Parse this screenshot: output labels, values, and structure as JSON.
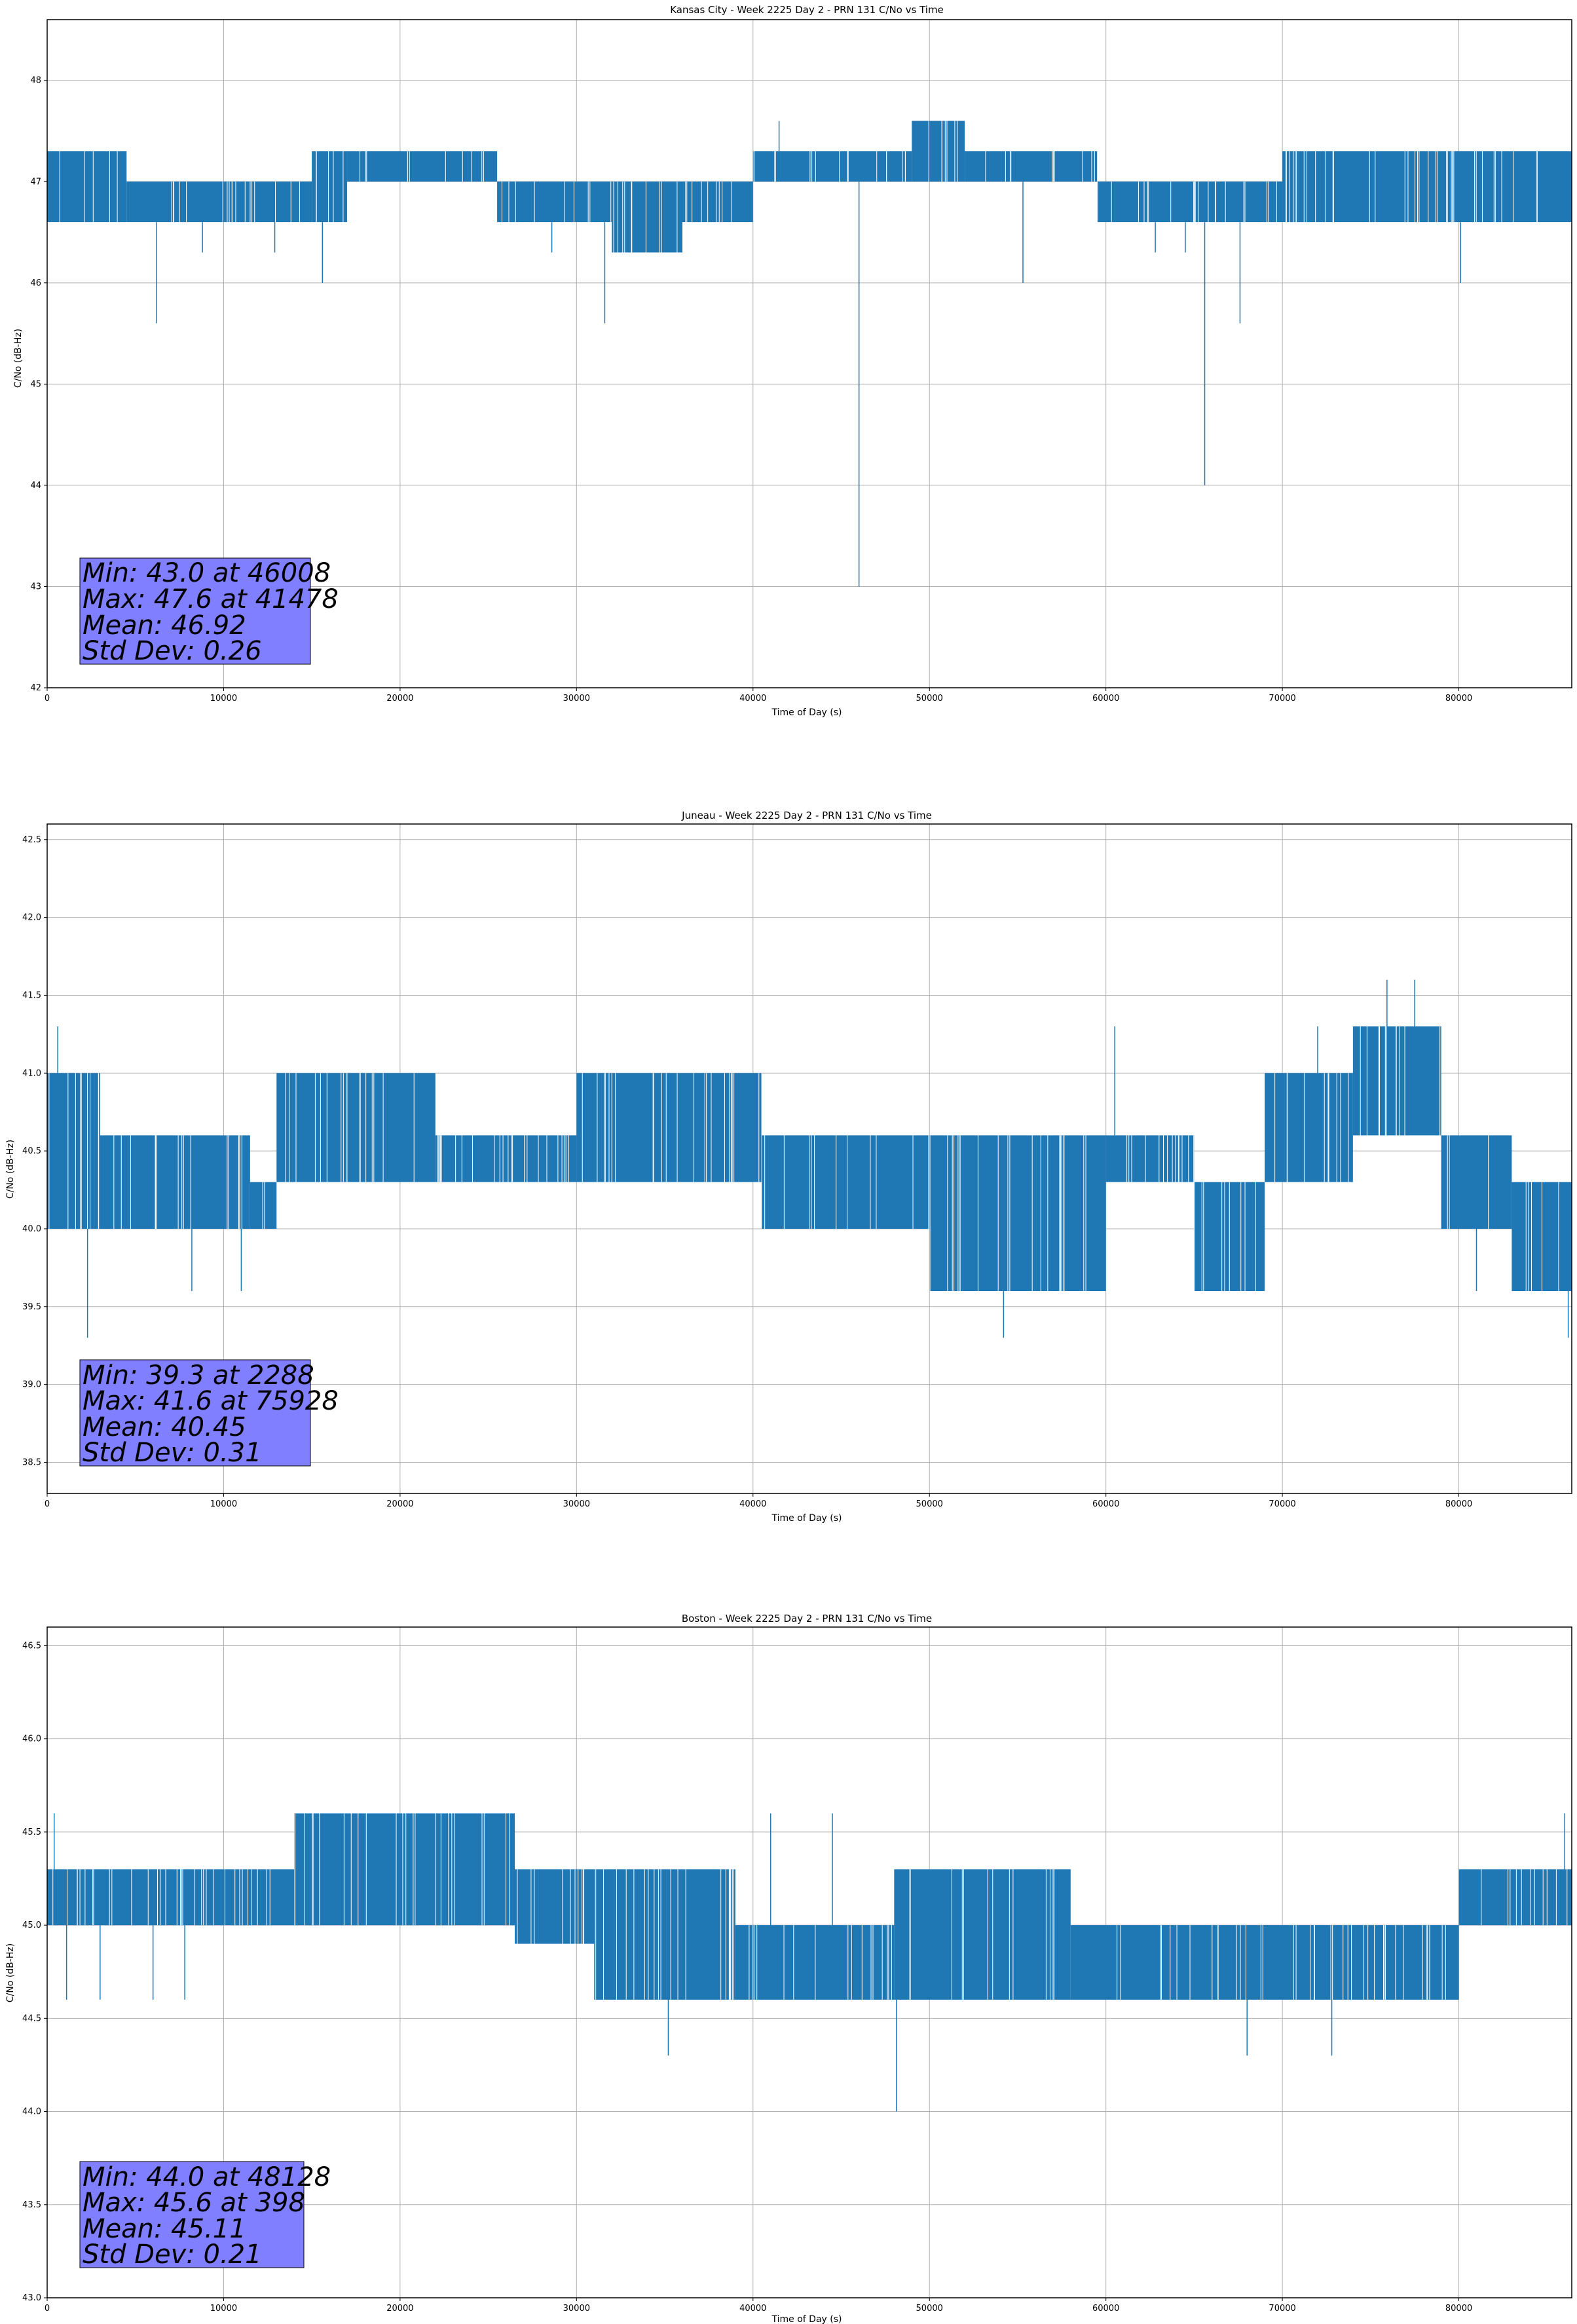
{
  "chart_data": [
    {
      "type": "line",
      "title": "Kansas City - Week 2225 Day 2 - PRN 131 C/No vs Time",
      "xlabel": "Time of Day (s)",
      "ylabel": "C/No (dB-Hz)",
      "xlim": [
        0,
        86400
      ],
      "ylim": [
        42,
        48.6
      ],
      "xticks": [
        0,
        10000,
        20000,
        30000,
        40000,
        50000,
        60000,
        70000,
        80000
      ],
      "yticks": [
        42,
        43,
        44,
        45,
        46,
        47,
        48
      ],
      "ytick_labels": [
        "42",
        "43",
        "44",
        "45",
        "46",
        "47",
        "48"
      ],
      "grid": true,
      "series_color": "#1f77b4",
      "series": [
        {
          "segments": [
            {
              "x": [
                0,
                4500
              ],
              "low": 46.6,
              "high": 47.3
            },
            {
              "x": [
                4500,
                15000
              ],
              "low": 46.6,
              "high": 47.0
            },
            {
              "x": [
                15000,
                17000
              ],
              "low": 46.6,
              "high": 47.3
            },
            {
              "x": [
                17000,
                25500
              ],
              "low": 47.0,
              "high": 47.3
            },
            {
              "x": [
                25500,
                32000
              ],
              "low": 46.6,
              "high": 47.0
            },
            {
              "x": [
                32000,
                36000
              ],
              "low": 46.3,
              "high": 47.0
            },
            {
              "x": [
                36000,
                40000
              ],
              "low": 46.6,
              "high": 47.0
            },
            {
              "x": [
                40000,
                49000
              ],
              "low": 47.0,
              "high": 47.3
            },
            {
              "x": [
                49000,
                52000
              ],
              "low": 47.0,
              "high": 47.6
            },
            {
              "x": [
                52000,
                59500
              ],
              "low": 47.0,
              "high": 47.3
            },
            {
              "x": [
                59500,
                70000
              ],
              "low": 46.6,
              "high": 47.0
            },
            {
              "x": [
                70000,
                86400
              ],
              "low": 46.6,
              "high": 47.3
            }
          ],
          "spikes": [
            {
              "x": 6200,
              "y": 45.6
            },
            {
              "x": 15600,
              "y": 46.0
            },
            {
              "x": 31600,
              "y": 45.6
            },
            {
              "x": 46008,
              "y": 43.0
            },
            {
              "x": 55300,
              "y": 46.0
            },
            {
              "x": 65600,
              "y": 44.0
            },
            {
              "x": 67600,
              "y": 45.6
            },
            {
              "x": 80100,
              "y": 46.0
            },
            {
              "x": 41478,
              "y": 47.6
            },
            {
              "x": 8800,
              "y": 46.3
            },
            {
              "x": 12900,
              "y": 46.3
            },
            {
              "x": 28600,
              "y": 46.3
            },
            {
              "x": 62800,
              "y": 46.3
            },
            {
              "x": 64500,
              "y": 46.3
            }
          ]
        }
      ],
      "annotation": [
        "Min: 43.0 at 46008",
        "Max: 47.6 at 41478",
        "Mean: 46.92",
        "Std Dev: 0.26"
      ]
    },
    {
      "type": "line",
      "title": "Juneau - Week 2225 Day 2 - PRN 131 C/No vs Time",
      "xlabel": "Time of Day (s)",
      "ylabel": "C/No (dB-Hz)",
      "xlim": [
        0,
        86400
      ],
      "ylim": [
        38.3,
        42.6
      ],
      "xticks": [
        0,
        10000,
        20000,
        30000,
        40000,
        50000,
        60000,
        70000,
        80000
      ],
      "yticks": [
        38.5,
        39.0,
        39.5,
        40.0,
        40.5,
        41.0,
        41.5,
        42.0,
        42.5
      ],
      "ytick_labels": [
        "38.5",
        "39.0",
        "39.5",
        "40.0",
        "40.5",
        "41.0",
        "41.5",
        "42.0",
        "42.5"
      ],
      "grid": true,
      "series_color": "#1f77b4",
      "series": [
        {
          "segments": [
            {
              "x": [
                0,
                3000
              ],
              "low": 40.0,
              "high": 41.0
            },
            {
              "x": [
                3000,
                11500
              ],
              "low": 40.0,
              "high": 40.6
            },
            {
              "x": [
                11500,
                13000
              ],
              "low": 40.0,
              "high": 40.3
            },
            {
              "x": [
                13000,
                22000
              ],
              "low": 40.3,
              "high": 41.0
            },
            {
              "x": [
                22000,
                30000
              ],
              "low": 40.3,
              "high": 40.6
            },
            {
              "x": [
                30000,
                40500
              ],
              "low": 40.3,
              "high": 41.0
            },
            {
              "x": [
                40500,
                50000
              ],
              "low": 40.0,
              "high": 40.6
            },
            {
              "x": [
                50000,
                60000
              ],
              "low": 39.6,
              "high": 40.6
            },
            {
              "x": [
                60000,
                65000
              ],
              "low": 40.3,
              "high": 40.6
            },
            {
              "x": [
                65000,
                69000
              ],
              "low": 39.6,
              "high": 40.3
            },
            {
              "x": [
                69000,
                74000
              ],
              "low": 40.3,
              "high": 41.0
            },
            {
              "x": [
                74000,
                79000
              ],
              "low": 40.6,
              "high": 41.3
            },
            {
              "x": [
                79000,
                83000
              ],
              "low": 40.0,
              "high": 40.6
            },
            {
              "x": [
                83000,
                86400
              ],
              "low": 39.6,
              "high": 40.3
            }
          ],
          "spikes": [
            {
              "x": 2288,
              "y": 39.3
            },
            {
              "x": 600,
              "y": 41.3
            },
            {
              "x": 8200,
              "y": 39.6
            },
            {
              "x": 11000,
              "y": 39.6
            },
            {
              "x": 54200,
              "y": 39.3
            },
            {
              "x": 60500,
              "y": 41.3
            },
            {
              "x": 75928,
              "y": 41.6
            },
            {
              "x": 77500,
              "y": 41.6
            },
            {
              "x": 86200,
              "y": 39.3
            },
            {
              "x": 72000,
              "y": 41.3
            },
            {
              "x": 81000,
              "y": 39.6
            }
          ]
        }
      ],
      "annotation": [
        "Min: 39.3 at 2288",
        "Max: 41.6 at 75928",
        "Mean: 40.45",
        "Std Dev: 0.31"
      ]
    },
    {
      "type": "line",
      "title": "Boston - Week 2225 Day 2 - PRN 131 C/No vs Time",
      "xlabel": "Time of Day (s)",
      "ylabel": "C/No (dB-Hz)",
      "xlim": [
        0,
        86400
      ],
      "ylim": [
        43.0,
        46.6
      ],
      "xticks": [
        0,
        10000,
        20000,
        30000,
        40000,
        50000,
        60000,
        70000,
        80000
      ],
      "yticks": [
        43.0,
        43.5,
        44.0,
        44.5,
        45.0,
        45.5,
        46.0,
        46.5
      ],
      "ytick_labels": [
        "43.0",
        "43.5",
        "44.0",
        "44.5",
        "45.0",
        "45.5",
        "46.0",
        "46.5"
      ],
      "grid": true,
      "series_color": "#1f77b4",
      "series": [
        {
          "segments": [
            {
              "x": [
                0,
                14000
              ],
              "low": 45.0,
              "high": 45.3
            },
            {
              "x": [
                14000,
                26500
              ],
              "low": 45.0,
              "high": 45.6
            },
            {
              "x": [
                26500,
                31000
              ],
              "low": 44.9,
              "high": 45.3
            },
            {
              "x": [
                31000,
                39000
              ],
              "low": 44.6,
              "high": 45.3
            },
            {
              "x": [
                39000,
                48000
              ],
              "low": 44.6,
              "high": 45.0
            },
            {
              "x": [
                48000,
                58000
              ],
              "low": 44.6,
              "high": 45.3
            },
            {
              "x": [
                58000,
                80000
              ],
              "low": 44.6,
              "high": 45.0
            },
            {
              "x": [
                80000,
                86400
              ],
              "low": 45.0,
              "high": 45.3
            }
          ],
          "spikes": [
            {
              "x": 398,
              "y": 45.6
            },
            {
              "x": 1100,
              "y": 44.6
            },
            {
              "x": 3000,
              "y": 44.6
            },
            {
              "x": 6000,
              "y": 44.6
            },
            {
              "x": 7800,
              "y": 44.6
            },
            {
              "x": 35200,
              "y": 44.3
            },
            {
              "x": 48128,
              "y": 44.0
            },
            {
              "x": 68000,
              "y": 44.3
            },
            {
              "x": 72800,
              "y": 44.3
            },
            {
              "x": 41000,
              "y": 45.6
            },
            {
              "x": 44500,
              "y": 45.6
            },
            {
              "x": 86000,
              "y": 45.6
            }
          ]
        }
      ],
      "annotation": [
        "Min: 44.0 at 48128",
        "Max: 45.6 at 398",
        "Mean: 45.11",
        "Std Dev: 0.21"
      ]
    }
  ]
}
